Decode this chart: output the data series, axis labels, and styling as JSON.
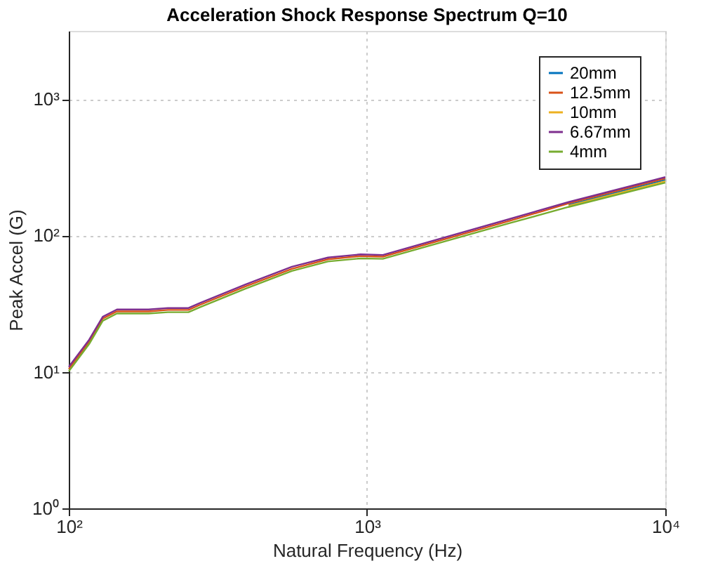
{
  "chart_data": {
    "type": "line",
    "title": "Acceleration Shock Response Spectrum Q=10",
    "xlabel": "Natural Frequency (Hz)",
    "ylabel": "Peak Accel (G)",
    "x": [
      100,
      117,
      130,
      145,
      185,
      215,
      252,
      275,
      390,
      560,
      740,
      952,
      1130,
      3000,
      4740,
      10000
    ],
    "series": [
      {
        "name": "20mm",
        "color": "#0072bd",
        "values": [
          null,
          null,
          null,
          null,
          null,
          null,
          null,
          null,
          null,
          null,
          null,
          null,
          null,
          null,
          168,
          256
        ]
      },
      {
        "name": "12.5mm",
        "color": "#d95319",
        "values": [
          10.5,
          16.6,
          24.6,
          27.8,
          27.8,
          28.5,
          28.5,
          31,
          42.3,
          57,
          67,
          70.7,
          70,
          128,
          172,
          262
        ]
      },
      {
        "name": "10mm",
        "color": "#edb120",
        "values": [
          null,
          null,
          null,
          null,
          null,
          null,
          null,
          null,
          null,
          null,
          null,
          null,
          null,
          null,
          165,
          250
        ]
      },
      {
        "name": "6.67mm",
        "color": "#7e2f8e",
        "values": [
          10.9,
          17.2,
          25.4,
          28.7,
          28.7,
          29.4,
          29.4,
          32,
          43.6,
          59,
          69,
          72.8,
          72,
          132,
          176,
          268
        ]
      },
      {
        "name": "4mm",
        "color": "#77ac30",
        "values": [
          10.1,
          16,
          23.7,
          26.8,
          26.8,
          27.4,
          27.4,
          29.8,
          40.7,
          55,
          64.5,
          68,
          67.5,
          123,
          162,
          244
        ]
      }
    ],
    "log": "xy",
    "xlim": [
      100,
      10000
    ],
    "ylim": [
      1,
      3162
    ],
    "xticks": [
      {
        "value": 100,
        "label": "10²"
      },
      {
        "value": 1000,
        "label": "10³"
      },
      {
        "value": 10000,
        "label": "10⁴"
      }
    ],
    "yticks": [
      {
        "value": 1,
        "label": "10⁰"
      },
      {
        "value": 10,
        "label": "10¹"
      },
      {
        "value": 100,
        "label": "10²"
      },
      {
        "value": 1000,
        "label": "10³"
      }
    ],
    "grid": true,
    "legend": "top right",
    "line_style": "solid"
  }
}
